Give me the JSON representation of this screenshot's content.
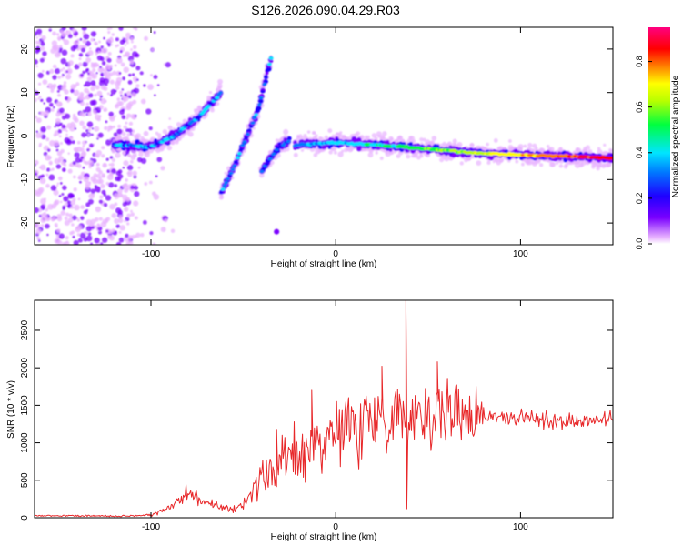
{
  "title": "S126.2026.090.04.29.R03",
  "colors": {
    "snr_line": "#e8282a",
    "palette": [
      "#ffffff",
      "#d9b3ff",
      "#a05cff",
      "#6a00ff",
      "#1f00ff",
      "#0078ff",
      "#00e5ff",
      "#00ff40",
      "#b8ff00",
      "#ffff00",
      "#ff8000",
      "#ff0000",
      "#ff00ff"
    ]
  },
  "chart_data": [
    {
      "type": "heatmap",
      "xlabel": "Height of straight line (km)",
      "ylabel": "Frequency (Hz)",
      "xlim": [
        -163,
        150
      ],
      "ylim": [
        -25,
        25
      ],
      "xticks": [
        -100,
        0,
        100
      ],
      "yticks": [
        -20,
        -10,
        0,
        10,
        20
      ],
      "x_tick_labels": [
        "-100",
        "0",
        "100"
      ],
      "y_tick_labels": [
        "-20",
        "-10",
        "0",
        "10",
        "20"
      ],
      "colorbar": {
        "label": "Normalized spectral amplitude",
        "range": [
          0.0,
          0.95
        ],
        "ticks": [
          0.0,
          0.2,
          0.4,
          0.6,
          0.8
        ],
        "tick_labels": [
          "0.0",
          "0.2",
          "0.4",
          "0.6",
          "0.8"
        ]
      },
      "ridges": [
        {
          "points": [
            [
              -120,
              -2
            ],
            [
              -100,
              -2.5
            ],
            [
              -88,
              0
            ],
            [
              -75,
              4
            ],
            [
              -62,
              10
            ]
          ],
          "peak_amplitude": 0.5
        },
        {
          "points": [
            [
              -62,
              -13
            ],
            [
              -55,
              -7
            ],
            [
              -48,
              0
            ],
            [
              -42,
              6
            ],
            [
              -35,
              18
            ]
          ],
          "peak_amplitude": 0.45
        },
        {
          "points": [
            [
              -40,
              -8
            ],
            [
              -32,
              -3
            ],
            [
              -25,
              -1
            ]
          ],
          "peak_amplitude": 0.4
        },
        {
          "points": [
            [
              -22,
              -2
            ],
            [
              0,
              -1.5
            ],
            [
              20,
              -2
            ],
            [
              50,
              -3
            ],
            [
              80,
              -4
            ],
            [
              110,
              -4.5
            ],
            [
              150,
              -5
            ]
          ],
          "peak_amplitude": 0.95
        }
      ]
    },
    {
      "type": "line",
      "xlabel": "Height of straight line (km)",
      "ylabel": "SNR (10 * v/v)",
      "xlim": [
        -163,
        150
      ],
      "ylim": [
        0,
        2900
      ],
      "xticks": [
        -100,
        0,
        100
      ],
      "yticks": [
        0,
        500,
        1000,
        1500,
        2000,
        2500
      ],
      "x_tick_labels": [
        "-100",
        "0",
        "100"
      ],
      "y_tick_labels": [
        "0",
        "500",
        "1000",
        "1500",
        "2000",
        "2500"
      ],
      "trend": {
        "x": [
          -163,
          -110,
          -100,
          -95,
          -90,
          -85,
          -80,
          -75,
          -70,
          -65,
          -60,
          -55,
          -50,
          -45,
          -40,
          -35,
          -30,
          -25,
          -20,
          -15,
          -10,
          -5,
          0,
          10,
          20,
          30,
          40,
          50,
          60,
          70,
          80,
          90,
          100,
          110,
          120,
          130,
          140,
          150
        ],
        "y": [
          20,
          25,
          40,
          80,
          150,
          250,
          320,
          280,
          200,
          150,
          110,
          120,
          200,
          350,
          520,
          620,
          700,
          800,
          880,
          960,
          1000,
          1050,
          1150,
          1250,
          1320,
          1380,
          1400,
          1420,
          1420,
          1400,
          1380,
          1350,
          1330,
          1310,
          1300,
          1290,
          1300,
          1320
        ]
      },
      "spikes": [
        {
          "x": 38,
          "y": 2900
        },
        {
          "x": 38.5,
          "y": 120
        },
        {
          "x": 55,
          "y": 2080
        },
        {
          "x": 25,
          "y": 2020
        },
        {
          "x": -13,
          "y": 1700
        },
        {
          "x": -32,
          "y": 1180
        }
      ]
    }
  ]
}
